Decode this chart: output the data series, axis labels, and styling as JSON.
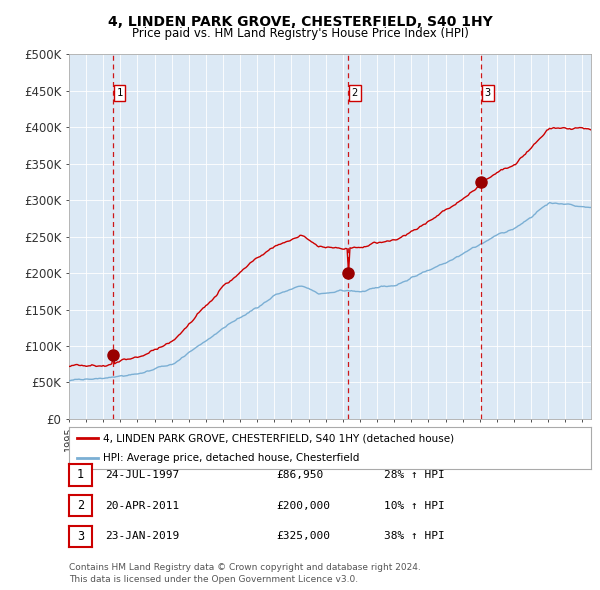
{
  "title": "4, LINDEN PARK GROVE, CHESTERFIELD, S40 1HY",
  "subtitle": "Price paid vs. HM Land Registry's House Price Index (HPI)",
  "background_color": "#ffffff",
  "plot_bg_color": "#dce9f5",
  "hpi_line_color": "#7bafd4",
  "price_line_color": "#cc0000",
  "sale_marker_color": "#990000",
  "vline_color": "#cc0000",
  "sale_events": [
    {
      "index": 1,
      "date": "24-JUL-1997",
      "price": 86950,
      "hpi_pct": "28% ↑ HPI"
    },
    {
      "index": 2,
      "date": "20-APR-2011",
      "price": 200000,
      "hpi_pct": "10% ↑ HPI"
    },
    {
      "index": 3,
      "date": "23-JAN-2019",
      "price": 325000,
      "hpi_pct": "38% ↑ HPI"
    }
  ],
  "sale_years": [
    1997.56,
    2011.3,
    2019.07
  ],
  "sale_prices": [
    86950,
    200000,
    325000
  ],
  "yticks": [
    0,
    50000,
    100000,
    150000,
    200000,
    250000,
    300000,
    350000,
    400000,
    450000,
    500000
  ],
  "ytick_labels": [
    "£0",
    "£50K",
    "£100K",
    "£150K",
    "£200K",
    "£250K",
    "£300K",
    "£350K",
    "£400K",
    "£450K",
    "£500K"
  ],
  "xmin": 1995.0,
  "xmax": 2025.5,
  "ymin": 0,
  "ymax": 500000,
  "legend1": "4, LINDEN PARK GROVE, CHESTERFIELD, S40 1HY (detached house)",
  "legend2": "HPI: Average price, detached house, Chesterfield",
  "footer1": "Contains HM Land Registry data © Crown copyright and database right 2024.",
  "footer2": "This data is licensed under the Open Government Licence v3.0."
}
